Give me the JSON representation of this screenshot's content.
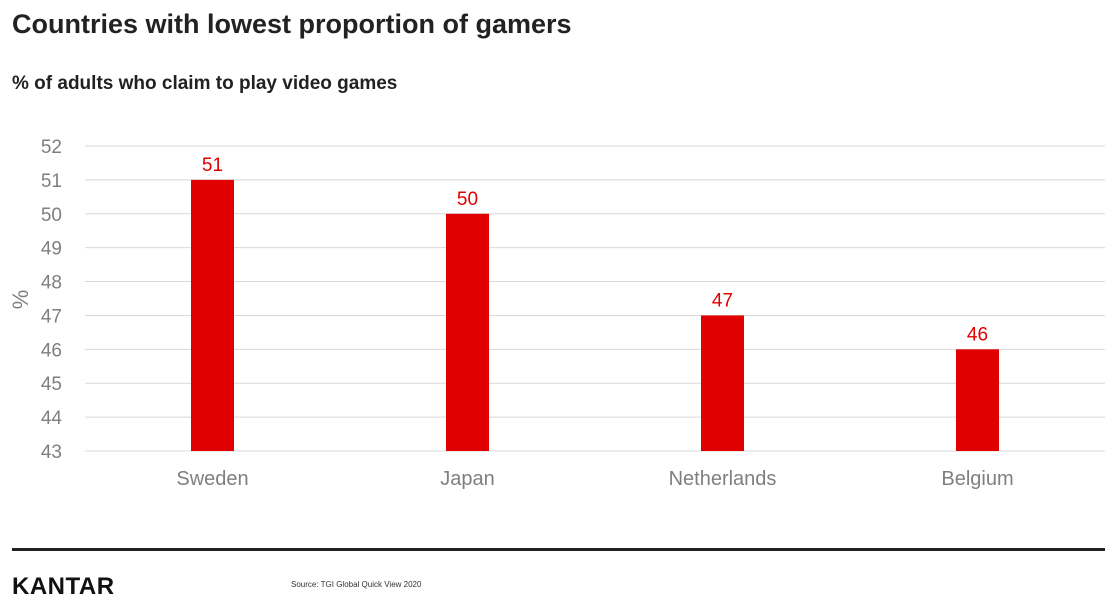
{
  "header": {
    "title": "Countries with lowest proportion of gamers",
    "subtitle": "% of adults who claim to play video games"
  },
  "footer": {
    "logo": "KANTAR",
    "source": "Source: TGI Global Quick View 2020"
  },
  "colors": {
    "bar": "#e00000",
    "data_label": "#e00000",
    "grid": "#d9d9d9",
    "axis_text": "#7f7f7f"
  },
  "chart_data": {
    "type": "bar",
    "categories": [
      "Sweden",
      "Japan",
      "Netherlands",
      "Belgium"
    ],
    "values": [
      51,
      50,
      47,
      46
    ],
    "ylabel": "%",
    "xlabel": "",
    "ylim": [
      43,
      52
    ],
    "yticks": [
      43,
      44,
      45,
      46,
      47,
      48,
      49,
      50,
      51,
      52
    ],
    "grid": true,
    "data_labels": true
  }
}
